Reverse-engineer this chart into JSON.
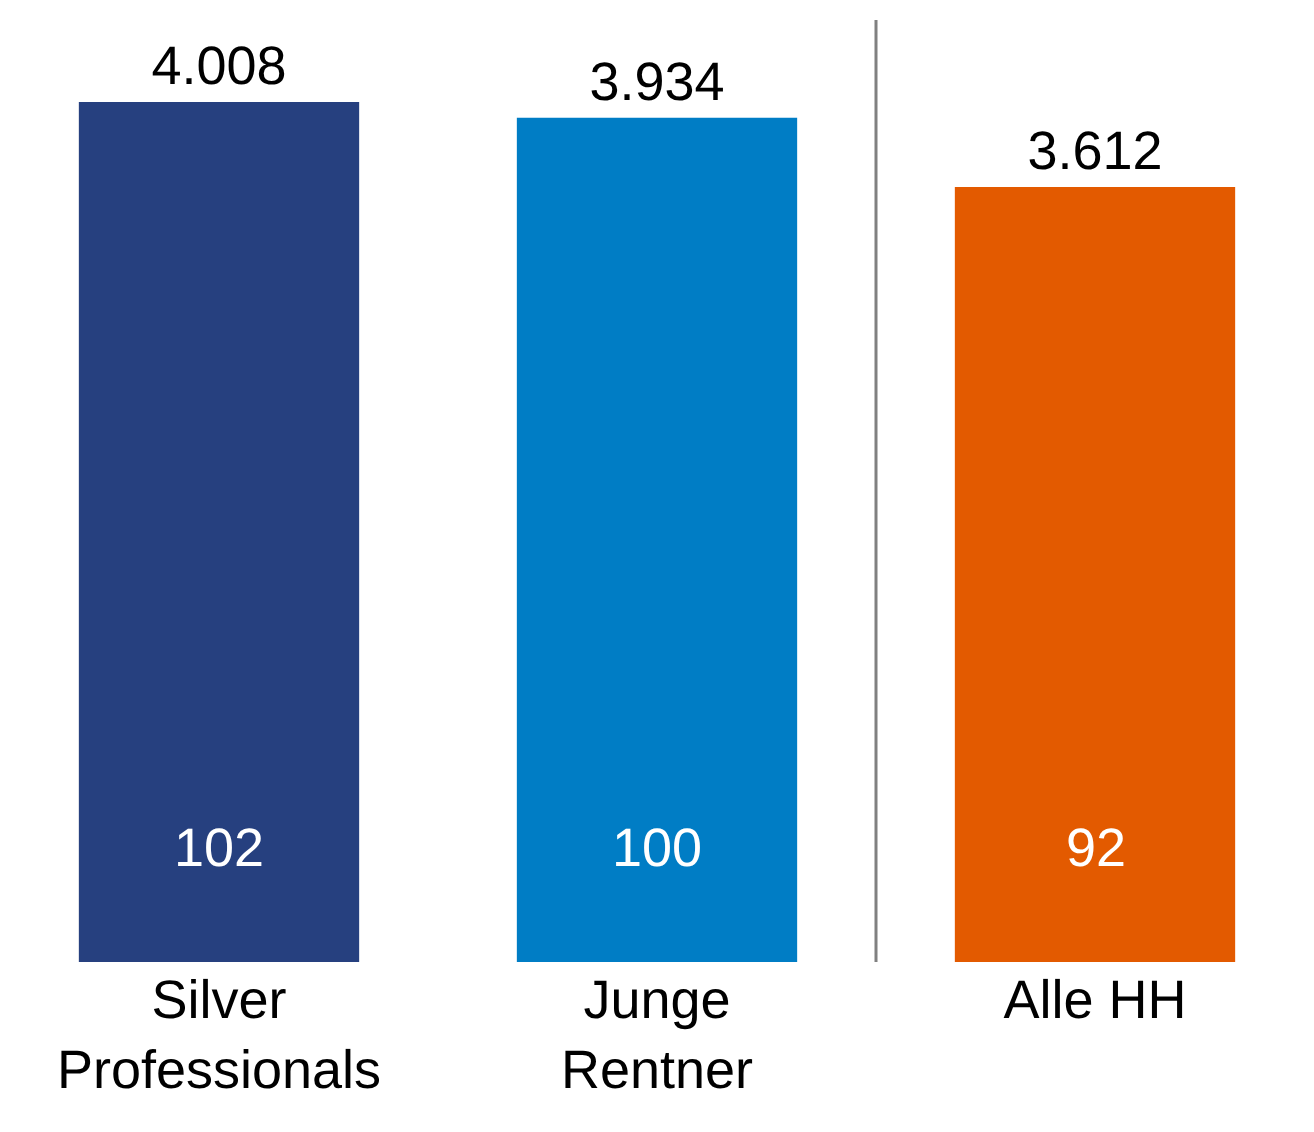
{
  "chart_data": {
    "type": "bar",
    "categories": [
      "Silver Professionals",
      "Junge Rentner",
      "Alle HH"
    ],
    "values": [
      4008,
      3934,
      3612
    ],
    "colors": [
      "#26407f",
      "#007dc5",
      "#e35a00"
    ],
    "value_labels": [
      "4.008",
      "3.934",
      "3.612"
    ],
    "annotations": [
      "102",
      "100",
      "92"
    ],
    "ylim": [
      0,
      4390
    ]
  }
}
